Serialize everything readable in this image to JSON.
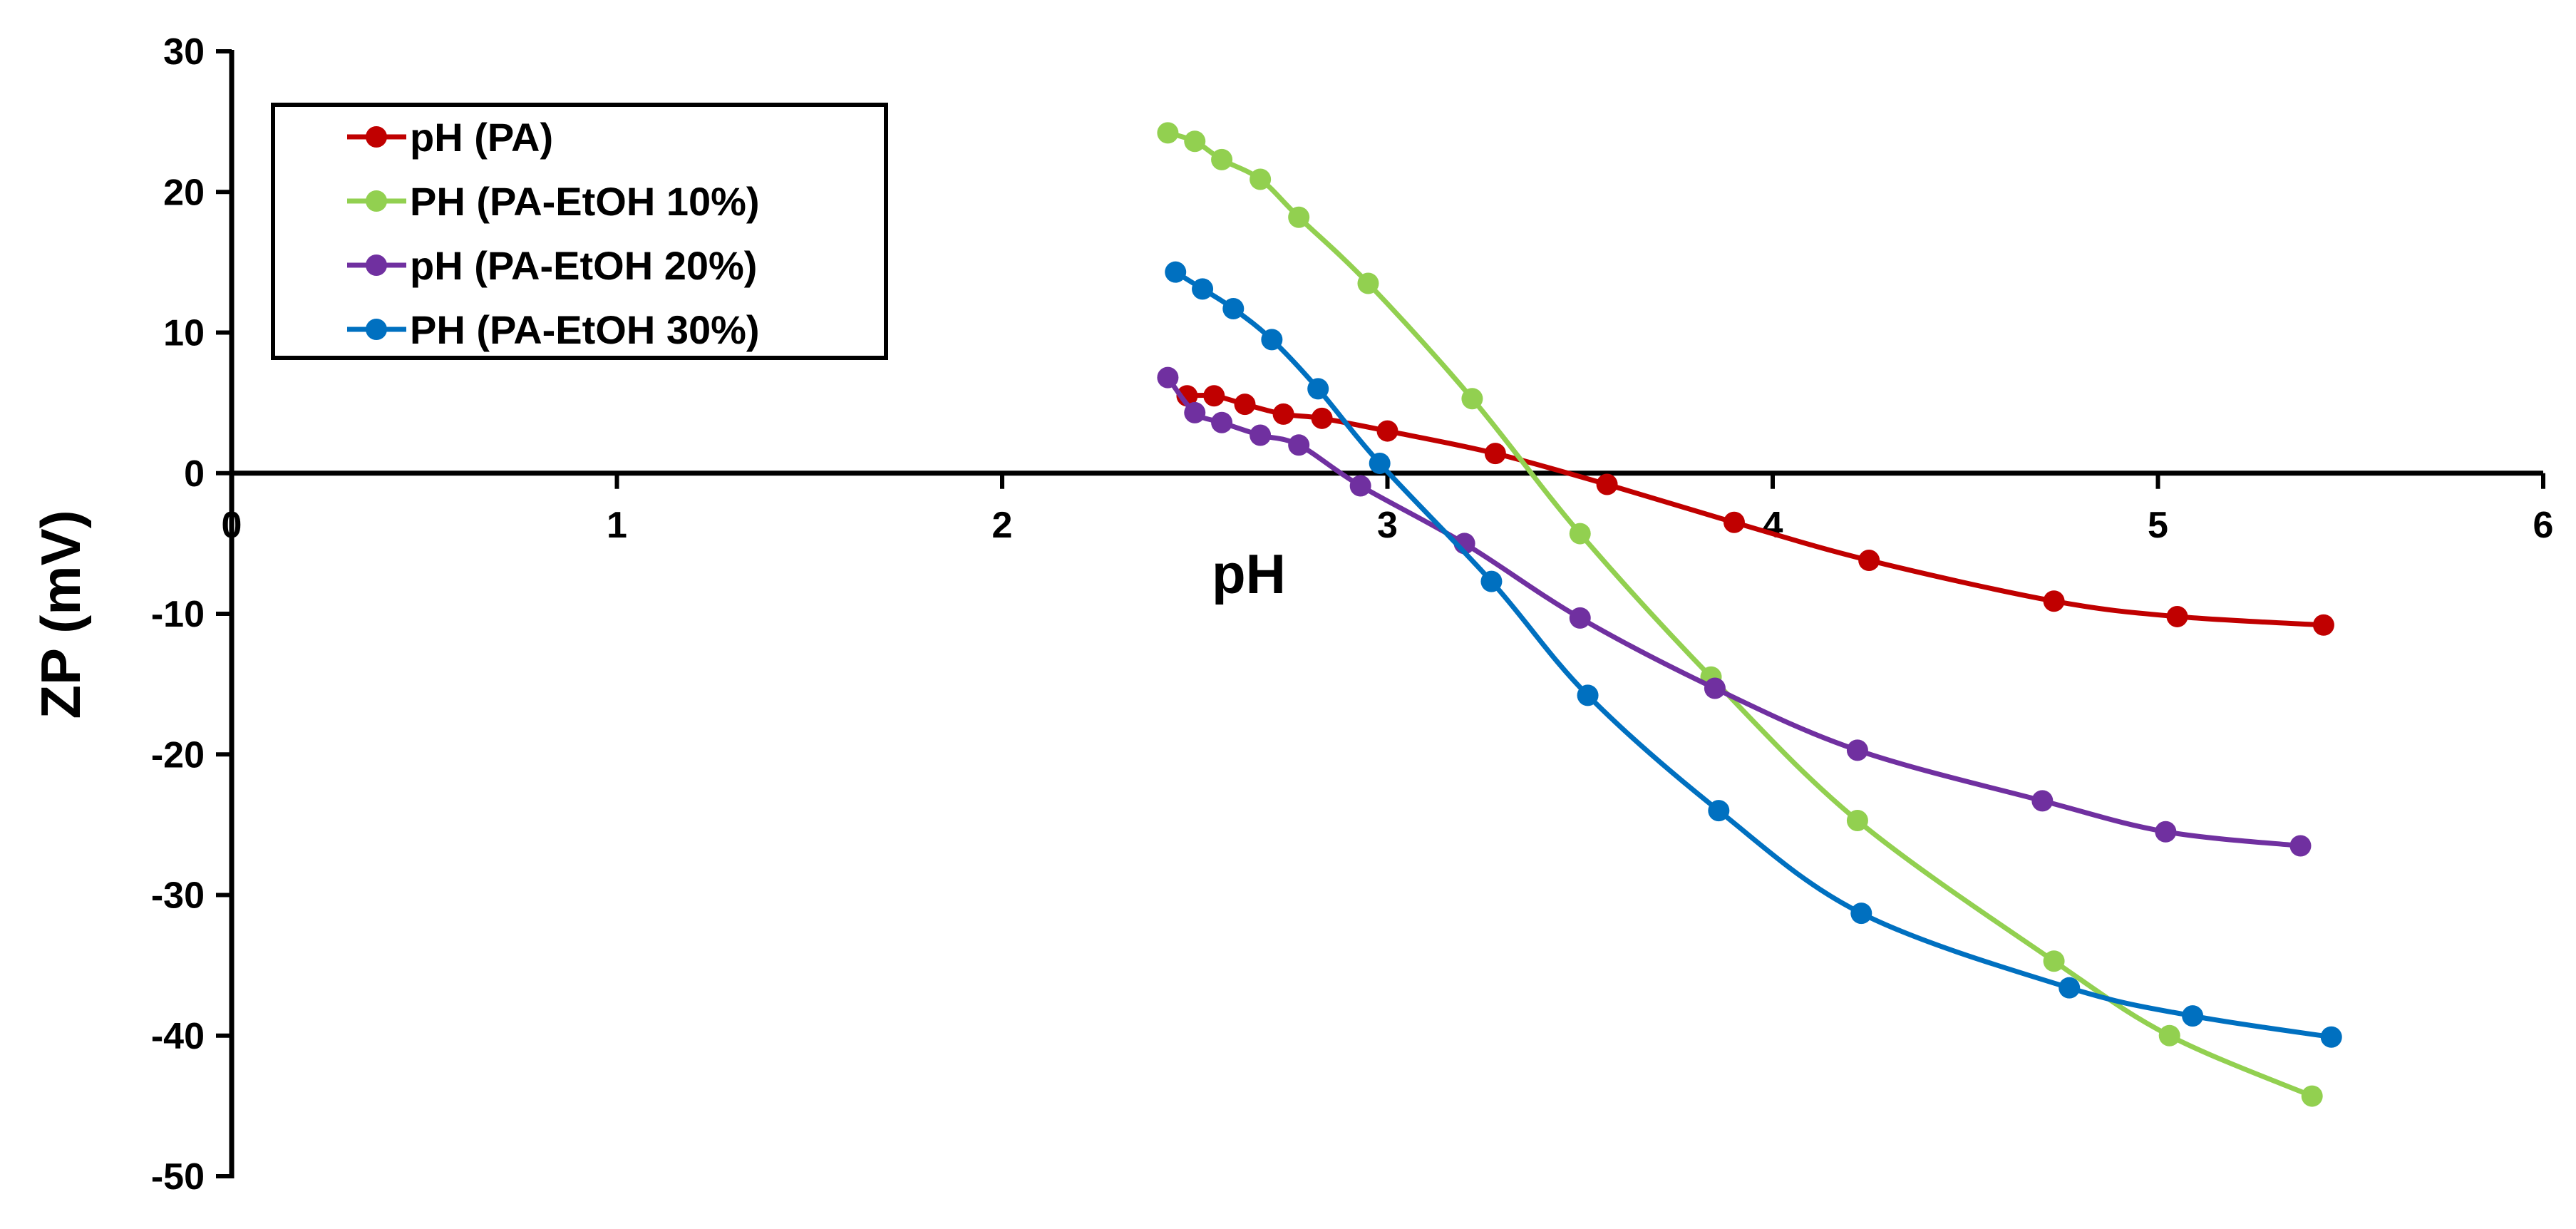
{
  "chart_data": {
    "type": "line",
    "title": "",
    "xlabel": "pH",
    "ylabel": "ZP (mV)",
    "xlim": [
      0,
      6
    ],
    "ylim": [
      -50,
      30
    ],
    "xticks": [
      0,
      1,
      2,
      3,
      4,
      5,
      6
    ],
    "yticks": [
      30,
      20,
      10,
      0,
      -10,
      -20,
      -30,
      -40,
      -50
    ],
    "grid": false,
    "legend_position": "top-left",
    "series": [
      {
        "name": "pH (PA)",
        "color": "#C00000",
        "x": [
          2.48,
          2.55,
          2.63,
          2.73,
          2.83,
          3.0,
          3.28,
          3.57,
          3.9,
          4.25,
          4.73,
          5.05,
          5.43
        ],
        "y": [
          5.5,
          5.5,
          4.9,
          4.2,
          3.9,
          3.0,
          1.4,
          -0.8,
          -3.5,
          -6.2,
          -9.1,
          -10.2,
          -10.8
        ]
      },
      {
        "name": "PH (PA-EtOH 10%)",
        "color": "#92D050",
        "x": [
          2.43,
          2.5,
          2.57,
          2.67,
          2.77,
          2.95,
          3.22,
          3.5,
          3.84,
          4.22,
          4.73,
          5.03,
          5.4
        ],
        "y": [
          24.2,
          23.6,
          22.3,
          20.9,
          18.2,
          13.5,
          5.3,
          -4.3,
          -14.5,
          -24.7,
          -34.7,
          -40.0,
          -44.3
        ]
      },
      {
        "name": "pH (PA-EtOH 20%)",
        "color": "#7030A0",
        "x": [
          2.43,
          2.5,
          2.57,
          2.67,
          2.77,
          2.93,
          3.2,
          3.5,
          3.85,
          4.22,
          4.7,
          5.02,
          5.37
        ],
        "y": [
          6.8,
          4.3,
          3.6,
          2.7,
          2.0,
          -0.9,
          -5.0,
          -10.3,
          -15.3,
          -19.7,
          -23.3,
          -25.5,
          -26.5
        ]
      },
      {
        "name": "PH (PA-EtOH 30%)",
        "color": "#0070C0",
        "x": [
          2.45,
          2.52,
          2.6,
          2.7,
          2.82,
          2.98,
          3.27,
          3.52,
          3.86,
          4.23,
          4.77,
          5.09,
          5.45
        ],
        "y": [
          14.3,
          13.1,
          11.7,
          9.5,
          6.0,
          0.7,
          -7.7,
          -15.8,
          -24.0,
          -31.3,
          -36.6,
          -38.6,
          -40.1
        ]
      }
    ]
  }
}
